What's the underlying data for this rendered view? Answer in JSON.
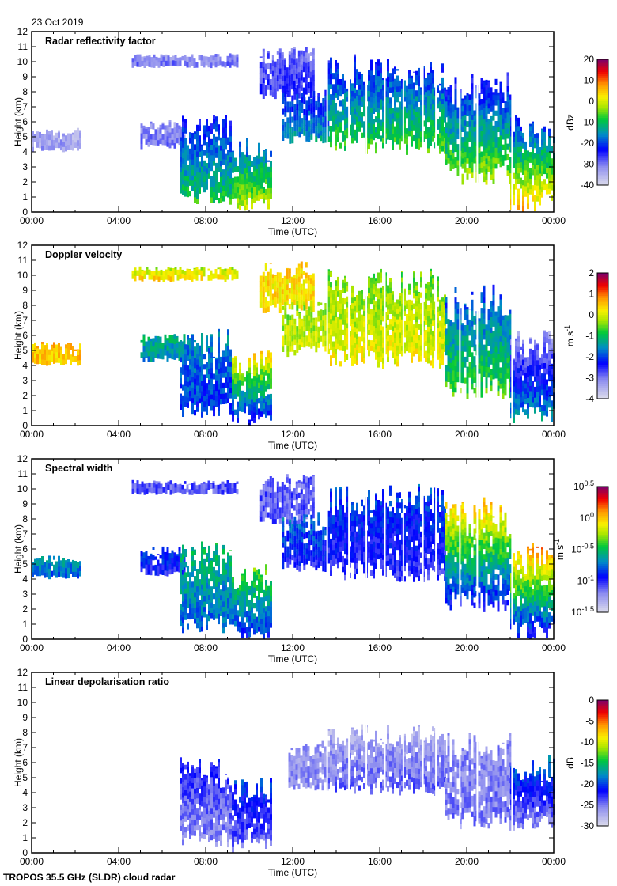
{
  "date": "23 Oct 2019",
  "footer": "TROPOS 35.5 GHz (SLDR) cloud radar",
  "chart_data": [
    {
      "type": "heatmap",
      "title": "Radar reflectivity factor",
      "xlabel": "Time (UTC)",
      "ylabel": "Height (km)",
      "xticks": [
        "00:00",
        "04:00",
        "08:00",
        "12:00",
        "16:00",
        "20:00",
        "00:00"
      ],
      "yticks": [
        "0",
        "1",
        "2",
        "3",
        "4",
        "5",
        "6",
        "7",
        "8",
        "9",
        "10",
        "11",
        "12"
      ],
      "ylim": [
        0,
        12
      ],
      "xlim_hours": [
        0,
        24
      ],
      "colorbar": {
        "unit": "dBz",
        "range": [
          -40,
          20
        ],
        "ticks": [
          {
            "b": "20"
          },
          {
            "b": "10"
          },
          {
            "b": "0"
          },
          {
            "b": "-10"
          },
          {
            "b": "-20"
          },
          {
            "b": "-30"
          },
          {
            "b": "-40"
          }
        ]
      },
      "regions": [
        {
          "t": [
            0,
            2.2
          ],
          "z": [
            4,
            5.6
          ],
          "v": [
            -35,
            -33
          ]
        },
        {
          "t": [
            4.6,
            9.5
          ],
          "z": [
            9.6,
            10.6
          ],
          "v": [
            -33,
            -30
          ]
        },
        {
          "t": [
            5,
            7
          ],
          "z": [
            4.2,
            6.2
          ],
          "v": [
            -33,
            -30
          ]
        },
        {
          "t": [
            6.8,
            9.2
          ],
          "z": [
            0.3,
            6.6
          ],
          "v": [
            -25,
            -8
          ]
        },
        {
          "t": [
            9.2,
            11
          ],
          "z": [
            0,
            5
          ],
          "v": [
            -22,
            0
          ]
        },
        {
          "t": [
            10.5,
            13
          ],
          "z": [
            7.5,
            11
          ],
          "v": [
            -30,
            -25
          ]
        },
        {
          "t": [
            11.5,
            13.6
          ],
          "z": [
            4.5,
            8.5
          ],
          "v": [
            -25,
            -14
          ]
        },
        {
          "t": [
            13.6,
            19
          ],
          "z": [
            3.8,
            10.5
          ],
          "v": [
            -25,
            -6
          ]
        },
        {
          "t": [
            19,
            22
          ],
          "z": [
            1.8,
            9.5
          ],
          "v": [
            -28,
            -2
          ]
        },
        {
          "t": [
            22,
            24
          ],
          "z": [
            0,
            6.5
          ],
          "v": [
            -25,
            6
          ]
        }
      ]
    },
    {
      "type": "heatmap",
      "title": "Doppler velocity",
      "xlabel": "Time (UTC)",
      "ylabel": "Height (km)",
      "xticks": [
        "00:00",
        "04:00",
        "08:00",
        "12:00",
        "16:00",
        "20:00",
        "00:00"
      ],
      "yticks": [
        "0",
        "1",
        "2",
        "3",
        "4",
        "5",
        "6",
        "7",
        "8",
        "9",
        "10",
        "11",
        "12"
      ],
      "ylim": [
        0,
        12
      ],
      "xlim_hours": [
        0,
        24
      ],
      "colorbar": {
        "unit": "m s-1",
        "range": [
          -4,
          2
        ],
        "ticks": [
          {
            "b": "2"
          },
          {
            "b": "1"
          },
          {
            "b": "0"
          },
          {
            "b": "-1"
          },
          {
            "b": "-2"
          },
          {
            "b": "-3"
          },
          {
            "b": "-4"
          }
        ]
      },
      "regions": [
        {
          "t": [
            0,
            2.2
          ],
          "z": [
            4,
            5.6
          ],
          "v": [
            0.6,
            0.4
          ]
        },
        {
          "t": [
            4.6,
            9.5
          ],
          "z": [
            9.6,
            10.6
          ],
          "v": [
            -0.3,
            0.3
          ]
        },
        {
          "t": [
            5,
            7
          ],
          "z": [
            4.2,
            6.2
          ],
          "v": [
            -1.2,
            -1.5
          ]
        },
        {
          "t": [
            6.8,
            9.2
          ],
          "z": [
            0.3,
            6.6
          ],
          "v": [
            -1.5,
            -2.2
          ]
        },
        {
          "t": [
            9.2,
            11
          ],
          "z": [
            0,
            5
          ],
          "v": [
            0.6,
            -2.5
          ]
        },
        {
          "t": [
            10.5,
            13
          ],
          "z": [
            7.5,
            11
          ],
          "v": [
            0.4,
            0.2
          ]
        },
        {
          "t": [
            11.5,
            13.6
          ],
          "z": [
            4.5,
            8.5
          ],
          "v": [
            -0.5,
            0
          ]
        },
        {
          "t": [
            13.6,
            19
          ],
          "z": [
            3.8,
            10.5
          ],
          "v": [
            -0.6,
            0.2
          ]
        },
        {
          "t": [
            19,
            22
          ],
          "z": [
            1.8,
            9.5
          ],
          "v": [
            -2.2,
            -0.6
          ]
        },
        {
          "t": [
            22,
            24
          ],
          "z": [
            0,
            6.5
          ],
          "v": [
            -3.4,
            -1.4
          ]
        }
      ]
    },
    {
      "type": "heatmap",
      "title": "Spectral width",
      "xlabel": "Time (UTC)",
      "ylabel": "Height (km)",
      "xticks": [
        "00:00",
        "04:00",
        "08:00",
        "12:00",
        "16:00",
        "20:00",
        "00:00"
      ],
      "yticks": [
        "0",
        "1",
        "2",
        "3",
        "4",
        "5",
        "6",
        "7",
        "8",
        "9",
        "10",
        "11",
        "12"
      ],
      "ylim": [
        0,
        12
      ],
      "xlim_hours": [
        0,
        24
      ],
      "colorbar": {
        "unit": "m s-1",
        "scale": "log",
        "range": [
          -1.5,
          0.5
        ],
        "ticks": [
          {
            "b": "10",
            "e": "0.5"
          },
          {
            "b": "10",
            "e": "0"
          },
          {
            "b": "10",
            "e": "-0.5"
          },
          {
            "b": "10",
            "e": "-1"
          },
          {
            "b": "10",
            "e": "-1.5"
          }
        ]
      },
      "regions": [
        {
          "t": [
            0,
            2.2
          ],
          "z": [
            4,
            5.6
          ],
          "v": [
            -0.6,
            -0.8
          ]
        },
        {
          "t": [
            4.6,
            9.5
          ],
          "z": [
            9.6,
            10.6
          ],
          "v": [
            -1.1,
            -1.1
          ]
        },
        {
          "t": [
            5,
            7
          ],
          "z": [
            4.2,
            6.2
          ],
          "v": [
            -0.8,
            -1
          ]
        },
        {
          "t": [
            6.8,
            9.2
          ],
          "z": [
            0.3,
            6.6
          ],
          "v": [
            -0.5,
            -0.8
          ]
        },
        {
          "t": [
            9.2,
            11
          ],
          "z": [
            0,
            5
          ],
          "v": [
            -0.3,
            -0.9
          ]
        },
        {
          "t": [
            10.5,
            13
          ],
          "z": [
            7.5,
            11
          ],
          "v": [
            -1.1,
            -1.1
          ]
        },
        {
          "t": [
            11.5,
            13.6
          ],
          "z": [
            4.5,
            8.5
          ],
          "v": [
            -0.7,
            -1.0
          ]
        },
        {
          "t": [
            13.6,
            19
          ],
          "z": [
            3.8,
            10.5
          ],
          "v": [
            -0.8,
            -1.05
          ]
        },
        {
          "t": [
            19,
            22
          ],
          "z": [
            1.8,
            9.5
          ],
          "v": [
            0.1,
            -1.0
          ]
        },
        {
          "t": [
            22,
            24
          ],
          "z": [
            0,
            6.5
          ],
          "v": [
            0.2,
            -1.0
          ]
        }
      ]
    },
    {
      "type": "heatmap",
      "title": "Linear depolarisation ratio",
      "xlabel": "Time (UTC)",
      "ylabel": "Height (km)",
      "xticks": [
        "00:00",
        "04:00",
        "08:00",
        "12:00",
        "16:00",
        "20:00",
        "00:00"
      ],
      "yticks": [
        "0",
        "1",
        "2",
        "3",
        "4",
        "5",
        "6",
        "7",
        "8",
        "9",
        "10",
        "11",
        "12"
      ],
      "ylim": [
        0,
        12
      ],
      "xlim_hours": [
        0,
        24
      ],
      "colorbar": {
        "unit": "dB",
        "range": [
          -30,
          0
        ],
        "ticks": [
          {
            "b": "0"
          },
          {
            "b": "-5"
          },
          {
            "b": "-10"
          },
          {
            "b": "-15"
          },
          {
            "b": "-20"
          },
          {
            "b": "-25"
          },
          {
            "b": "-30"
          }
        ]
      },
      "regions": [
        {
          "t": [
            6.8,
            9.2
          ],
          "z": [
            0.3,
            6.6
          ],
          "v": [
            -22,
            -26
          ]
        },
        {
          "t": [
            9.2,
            11
          ],
          "z": [
            0,
            5
          ],
          "v": [
            -20,
            -25
          ]
        },
        {
          "t": [
            11.8,
            13.6
          ],
          "z": [
            4,
            7.5
          ],
          "v": [
            -26,
            -26
          ]
        },
        {
          "t": [
            13.6,
            19
          ],
          "z": [
            3.8,
            8.6
          ],
          "v": [
            -28,
            -24
          ]
        },
        {
          "t": [
            19,
            22
          ],
          "z": [
            1.5,
            8
          ],
          "v": [
            -26,
            -25
          ]
        },
        {
          "t": [
            22,
            24
          ],
          "z": [
            1.5,
            6.5
          ],
          "v": [
            -18,
            -26
          ]
        }
      ]
    }
  ]
}
